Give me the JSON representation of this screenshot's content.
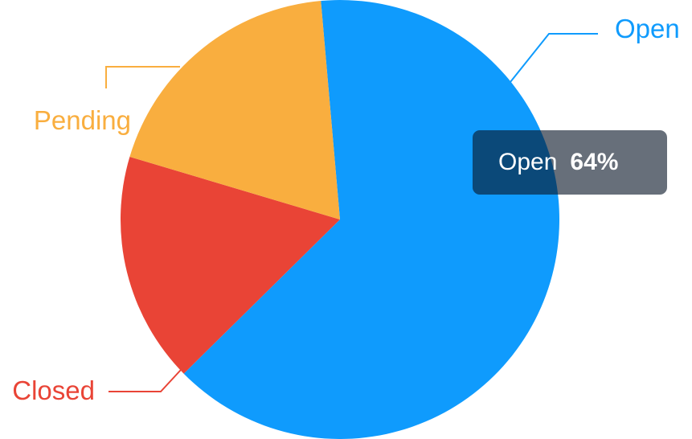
{
  "chart_data": {
    "type": "pie",
    "title": "",
    "slices": [
      {
        "label": "Open",
        "value": 64,
        "color": "#0f9bfd"
      },
      {
        "label": "Closed",
        "value": 17,
        "color": "#e94436"
      },
      {
        "label": "Pending",
        "value": 19,
        "color": "#f9ae3f"
      }
    ],
    "label_placement": "outside with leader lines",
    "legend": "none"
  },
  "tooltip": {
    "label": "Open",
    "value": "64%"
  }
}
